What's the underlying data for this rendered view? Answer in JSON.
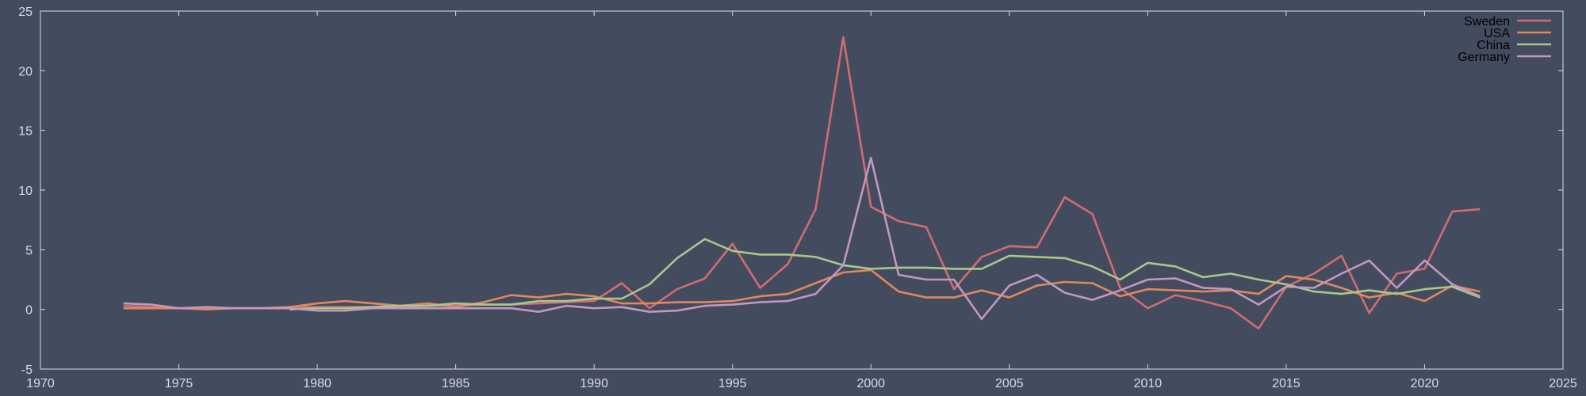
{
  "chart_data": {
    "type": "line",
    "title": "",
    "xlabel": "",
    "ylabel": "",
    "xlim": [
      1970,
      2025
    ],
    "ylim": [
      -5,
      25
    ],
    "xticks": [
      1970,
      1975,
      1980,
      1985,
      1990,
      1995,
      2000,
      2005,
      2010,
      2015,
      2020,
      2025
    ],
    "yticks": [
      -5,
      0,
      5,
      10,
      15,
      20,
      25
    ],
    "grid": false,
    "legend_position": "top-right",
    "series": [
      {
        "name": "Sweden",
        "color": "#d06c73",
        "x": [
          1973,
          1974,
          1975,
          1976,
          1977,
          1978,
          1979,
          1980,
          1981,
          1982,
          1983,
          1984,
          1985,
          1986,
          1987,
          1988,
          1989,
          1990,
          1991,
          1992,
          1993,
          1994,
          1995,
          1996,
          1997,
          1998,
          1999,
          2000,
          2001,
          2002,
          2003,
          2004,
          2005,
          2006,
          2007,
          2008,
          2009,
          2010,
          2011,
          2012,
          2013,
          2014,
          2015,
          2016,
          2017,
          2018,
          2019,
          2020,
          2021,
          2022
        ],
        "y": [
          0.3,
          0.2,
          0.1,
          0.1,
          0.1,
          0.1,
          0.2,
          0.2,
          0.2,
          0.2,
          0.2,
          0.3,
          0.3,
          0.4,
          0.4,
          0.5,
          0.6,
          0.7,
          2.2,
          0.1,
          1.7,
          2.6,
          5.5,
          1.8,
          3.8,
          8.4,
          22.8,
          8.6,
          7.4,
          6.9,
          1.7,
          4.4,
          5.3,
          5.2,
          9.4,
          8.0,
          1.8,
          0.1,
          1.2,
          0.7,
          0.1,
          -1.6,
          1.9,
          3.0,
          4.5,
          -0.3,
          3.0,
          3.4,
          8.2,
          8.4
        ]
      },
      {
        "name": "USA",
        "color": "#e0895e",
        "x": [
          1973,
          1974,
          1975,
          1976,
          1977,
          1978,
          1979,
          1980,
          1981,
          1982,
          1983,
          1984,
          1985,
          1986,
          1987,
          1988,
          1989,
          1990,
          1991,
          1992,
          1993,
          1994,
          1995,
          1996,
          1997,
          1998,
          1999,
          2000,
          2001,
          2002,
          2003,
          2004,
          2005,
          2006,
          2007,
          2008,
          2009,
          2010,
          2011,
          2012,
          2013,
          2014,
          2015,
          2016,
          2017,
          2018,
          2019,
          2020,
          2021,
          2022
        ],
        "y": [
          0.1,
          0.1,
          0.1,
          0.0,
          0.1,
          0.1,
          0.2,
          0.5,
          0.7,
          0.5,
          0.3,
          0.5,
          0.2,
          0.6,
          1.2,
          1.0,
          1.3,
          1.1,
          0.5,
          0.5,
          0.6,
          0.6,
          0.7,
          1.1,
          1.3,
          2.2,
          3.1,
          3.3,
          1.5,
          1.0,
          1.0,
          1.6,
          1.0,
          2.0,
          2.3,
          2.2,
          1.1,
          1.7,
          1.6,
          1.5,
          1.6,
          1.3,
          2.8,
          2.5,
          1.8,
          1.0,
          1.4,
          0.7,
          2.0,
          1.5
        ]
      },
      {
        "name": "China",
        "color": "#a8c88c",
        "x": [
          1979,
          1980,
          1981,
          1982,
          1983,
          1984,
          1985,
          1986,
          1987,
          1988,
          1989,
          1990,
          1991,
          1992,
          1993,
          1994,
          1995,
          1996,
          1997,
          1998,
          1999,
          2000,
          2001,
          2002,
          2003,
          2004,
          2005,
          2006,
          2007,
          2008,
          2009,
          2010,
          2011,
          2012,
          2013,
          2014,
          2015,
          2016,
          2017,
          2018,
          2019,
          2020,
          2021,
          2022
        ],
        "y": [
          0.0,
          0.1,
          0.1,
          0.2,
          0.3,
          0.3,
          0.5,
          0.4,
          0.4,
          0.7,
          0.7,
          0.9,
          0.9,
          2.1,
          4.3,
          5.9,
          4.9,
          4.6,
          4.6,
          4.4,
          3.7,
          3.4,
          3.5,
          3.5,
          3.4,
          3.4,
          4.5,
          4.4,
          4.3,
          3.6,
          2.5,
          3.9,
          3.6,
          2.7,
          3.0,
          2.5,
          2.1,
          1.5,
          1.3,
          1.6,
          1.3,
          1.7,
          1.9,
          1.0
        ]
      },
      {
        "name": "Germany",
        "color": "#c398c0",
        "x": [
          1973,
          1974,
          1975,
          1976,
          1977,
          1978,
          1979,
          1980,
          1981,
          1982,
          1983,
          1984,
          1985,
          1986,
          1987,
          1988,
          1989,
          1990,
          1991,
          1992,
          1993,
          1994,
          1995,
          1996,
          1997,
          1998,
          1999,
          2000,
          2001,
          2002,
          2003,
          2004,
          2005,
          2006,
          2007,
          2008,
          2009,
          2010,
          2011,
          2012,
          2013,
          2014,
          2015,
          2016,
          2017,
          2018,
          2019,
          2020,
          2021,
          2022
        ],
        "y": [
          0.5,
          0.4,
          0.1,
          0.2,
          0.1,
          0.1,
          0.1,
          -0.1,
          -0.1,
          0.1,
          0.1,
          0.1,
          0.1,
          0.1,
          0.1,
          -0.2,
          0.3,
          0.1,
          0.2,
          -0.2,
          -0.1,
          0.3,
          0.4,
          0.6,
          0.7,
          1.3,
          3.7,
          12.7,
          2.9,
          2.5,
          2.5,
          -0.8,
          2.0,
          2.9,
          1.4,
          0.8,
          1.6,
          2.5,
          2.6,
          1.8,
          1.7,
          0.4,
          1.9,
          1.8,
          3.0,
          4.1,
          1.8,
          4.1,
          2.1,
          1.1
        ]
      }
    ]
  }
}
